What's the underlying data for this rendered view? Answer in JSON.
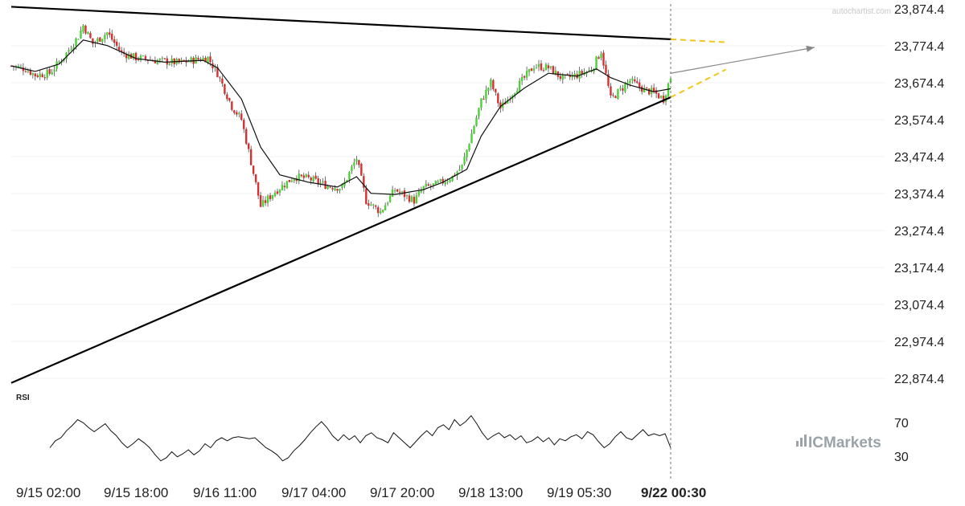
{
  "watermark": "autochartist.com",
  "broker_logo": "ICMarkets",
  "rsi_label": "RSI",
  "colors": {
    "up": "#4cd137",
    "down": "#d63031",
    "trendline": "#000000",
    "projection": "#f5c518",
    "arrow": "#888888",
    "ma": "#111111",
    "logo": "#9aa3a8"
  },
  "chart_data": {
    "type": "candlestick",
    "symbol_timeframe": "30m",
    "y_ticks": [
      "23,874.4",
      "23,774.4",
      "23,674.4",
      "23,574.4",
      "23,474.4",
      "23,374.4",
      "23,274.4",
      "23,174.4",
      "23,074.4",
      "22,974.4",
      "22,874.4"
    ],
    "y_tick_values": [
      23874.4,
      23774.4,
      23674.4,
      23574.4,
      23474.4,
      23374.4,
      23274.4,
      23174.4,
      23074.4,
      22974.4,
      22874.4
    ],
    "ylim": [
      22850,
      23880
    ],
    "x_ticks": [
      "9/15 02:00",
      "9/15 18:00",
      "9/16 11:00",
      "9/17 04:00",
      "9/17 20:00",
      "9/18 13:00",
      "9/19 05:30",
      "9/22 00:30"
    ],
    "highlight_tick": "9/22 00:30",
    "bar_count": 276,
    "close_path": [
      [
        0,
        23720
      ],
      [
        6,
        23712
      ],
      [
        10,
        23695
      ],
      [
        16,
        23700
      ],
      [
        22,
        23745
      ],
      [
        28,
        23800
      ],
      [
        30,
        23830
      ],
      [
        34,
        23780
      ],
      [
        40,
        23810
      ],
      [
        46,
        23755
      ],
      [
        52,
        23742
      ],
      [
        60,
        23735
      ],
      [
        70,
        23728
      ],
      [
        78,
        23738
      ],
      [
        82,
        23742
      ],
      [
        86,
        23700
      ],
      [
        92,
        23610
      ],
      [
        96,
        23575
      ],
      [
        100,
        23460
      ],
      [
        104,
        23340
      ],
      [
        110,
        23380
      ],
      [
        118,
        23420
      ],
      [
        124,
        23415
      ],
      [
        132,
        23395
      ],
      [
        138,
        23390
      ],
      [
        144,
        23470
      ],
      [
        148,
        23355
      ],
      [
        154,
        23325
      ],
      [
        160,
        23385
      ],
      [
        168,
        23355
      ],
      [
        172,
        23390
      ],
      [
        178,
        23400
      ],
      [
        184,
        23420
      ],
      [
        188,
        23448
      ],
      [
        196,
        23625
      ],
      [
        200,
        23675
      ],
      [
        204,
        23605
      ],
      [
        210,
        23655
      ],
      [
        218,
        23720
      ],
      [
        224,
        23715
      ],
      [
        230,
        23685
      ],
      [
        236,
        23695
      ],
      [
        242,
        23710
      ],
      [
        246,
        23760
      ],
      [
        250,
        23630
      ],
      [
        258,
        23680
      ],
      [
        264,
        23655
      ],
      [
        268,
        23648
      ],
      [
        272,
        23630
      ],
      [
        275,
        23690
      ]
    ],
    "ma_path": [
      [
        0,
        23720
      ],
      [
        10,
        23705
      ],
      [
        20,
        23725
      ],
      [
        30,
        23790
      ],
      [
        40,
        23775
      ],
      [
        52,
        23740
      ],
      [
        64,
        23730
      ],
      [
        80,
        23735
      ],
      [
        86,
        23715
      ],
      [
        96,
        23630
      ],
      [
        104,
        23500
      ],
      [
        112,
        23425
      ],
      [
        124,
        23405
      ],
      [
        136,
        23392
      ],
      [
        144,
        23420
      ],
      [
        150,
        23375
      ],
      [
        160,
        23372
      ],
      [
        172,
        23385
      ],
      [
        180,
        23405
      ],
      [
        190,
        23440
      ],
      [
        196,
        23530
      ],
      [
        204,
        23610
      ],
      [
        214,
        23660
      ],
      [
        224,
        23700
      ],
      [
        236,
        23692
      ],
      [
        244,
        23712
      ],
      [
        250,
        23688
      ],
      [
        258,
        23668
      ],
      [
        268,
        23650
      ],
      [
        275,
        23658
      ]
    ],
    "trendlines": [
      {
        "name": "resistance",
        "start": [
          0,
          23880
        ],
        "end": [
          275,
          23792
        ]
      },
      {
        "name": "support",
        "start": [
          0,
          22862
        ],
        "end": [
          275,
          23635
        ]
      }
    ],
    "projections": [
      {
        "name": "resistance-projection",
        "start": [
          275,
          23792
        ],
        "end": [
          298,
          23784
        ]
      },
      {
        "name": "support-projection",
        "start": [
          275,
          23635
        ],
        "end": [
          298,
          23710
        ]
      }
    ],
    "forecast_arrow": {
      "start": [
        275,
        23700
      ],
      "end": [
        335,
        23770
      ]
    },
    "rsi": {
      "ylim": [
        18,
        82
      ],
      "ticks": [
        "70",
        "30"
      ],
      "tick_values": [
        70,
        30
      ],
      "values": [
        40,
        47,
        50,
        57,
        62,
        68,
        65,
        60,
        56,
        60,
        64,
        57,
        52,
        45,
        40,
        44,
        49,
        45,
        40,
        33,
        27,
        30,
        36,
        31,
        34,
        38,
        33,
        37,
        44,
        40,
        47,
        50,
        47,
        50,
        51,
        50,
        49,
        50,
        45,
        40,
        37,
        33,
        27,
        30,
        37,
        42,
        48,
        55,
        61,
        66,
        60,
        52,
        47,
        53,
        48,
        52,
        45,
        52,
        55,
        50,
        48,
        45,
        55,
        50,
        45,
        40,
        46,
        52,
        57,
        52,
        60,
        63,
        58,
        68,
        62,
        66,
        72,
        64,
        55,
        48,
        52,
        55,
        50,
        53,
        48,
        52,
        45,
        47,
        51,
        46,
        50,
        43,
        49,
        47,
        51,
        53,
        49,
        56,
        53,
        46,
        40,
        44,
        51,
        56,
        50,
        48,
        53,
        58,
        52,
        54,
        52,
        54,
        40
      ]
    }
  },
  "x_axis": {
    "t1": "9/15 02:00",
    "t2": "9/15 18:00",
    "t3": "9/16 11:00",
    "t4": "9/17 04:00",
    "t5": "9/17 20:00",
    "t6": "9/18 13:00",
    "t7": "9/19 05:30",
    "t8": "9/22 00:30"
  },
  "y_axis": {
    "y1": "23,874.4",
    "y2": "23,774.4",
    "y3": "23,674.4",
    "y4": "23,574.4",
    "y5": "23,474.4",
    "y6": "23,374.4",
    "y7": "23,274.4",
    "y8": "23,174.4",
    "y9": "23,074.4",
    "y10": "22,974.4",
    "y11": "22,874.4"
  },
  "rsi_axis": {
    "r70": "70",
    "r30": "30"
  }
}
